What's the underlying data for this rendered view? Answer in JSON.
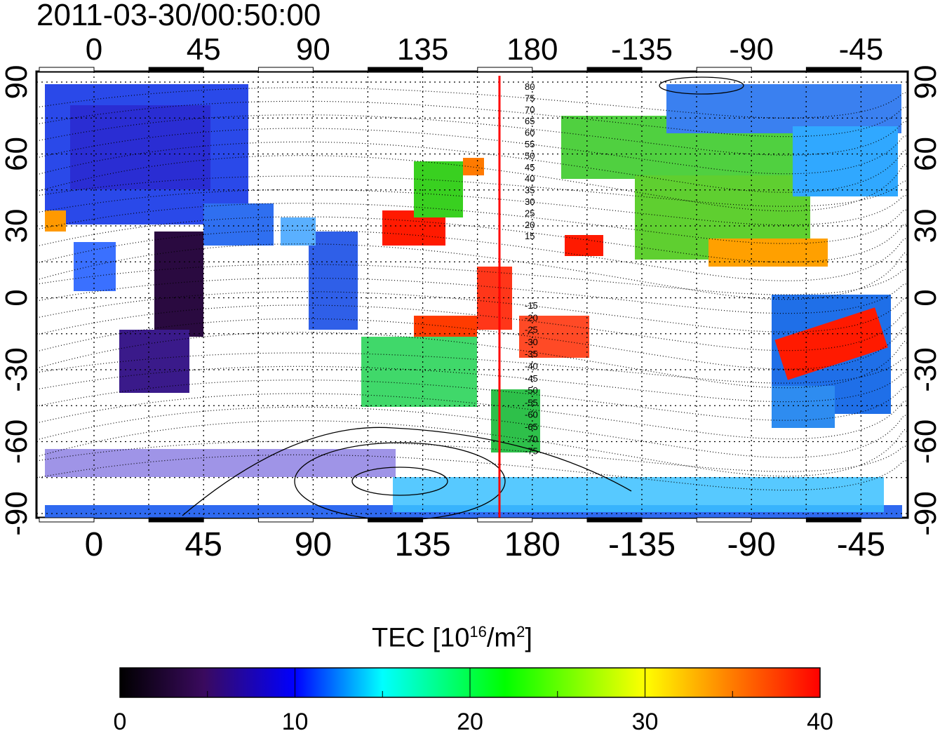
{
  "title": "2011-03-30/00:50:00",
  "map": {
    "lon_ticks": [
      "0",
      "45",
      "90",
      "135",
      "180",
      "-135",
      "-90",
      "-45"
    ],
    "lat_ticks": [
      "90",
      "60",
      "30",
      "0",
      "-30",
      "-60",
      "-90"
    ],
    "marker_line_color": "#ff0000",
    "north_labels": [
      "80",
      "75",
      "70",
      "65",
      "60",
      "55",
      "50",
      "45",
      "40",
      "35",
      "30",
      "25",
      "20",
      "15"
    ],
    "south_labels": [
      "-15",
      "-20",
      "-25",
      "-30",
      "-35",
      "-40",
      "-45",
      "-50",
      "-55",
      "-60",
      "-65",
      "-70",
      "-75"
    ]
  },
  "colorbar": {
    "label_prefix": "TEC  [10",
    "label_exp": "16",
    "label_mid": "/m",
    "label_exp2": "2",
    "label_suffix": "]",
    "ticks": [
      "0",
      "10",
      "20",
      "30",
      "40"
    ],
    "range": [
      0,
      40
    ],
    "colors": [
      "#000000",
      "#3a0a5e",
      "#0000ff",
      "#00ffff",
      "#00ff00",
      "#ffff00",
      "#ff8000",
      "#ff0000"
    ]
  }
}
